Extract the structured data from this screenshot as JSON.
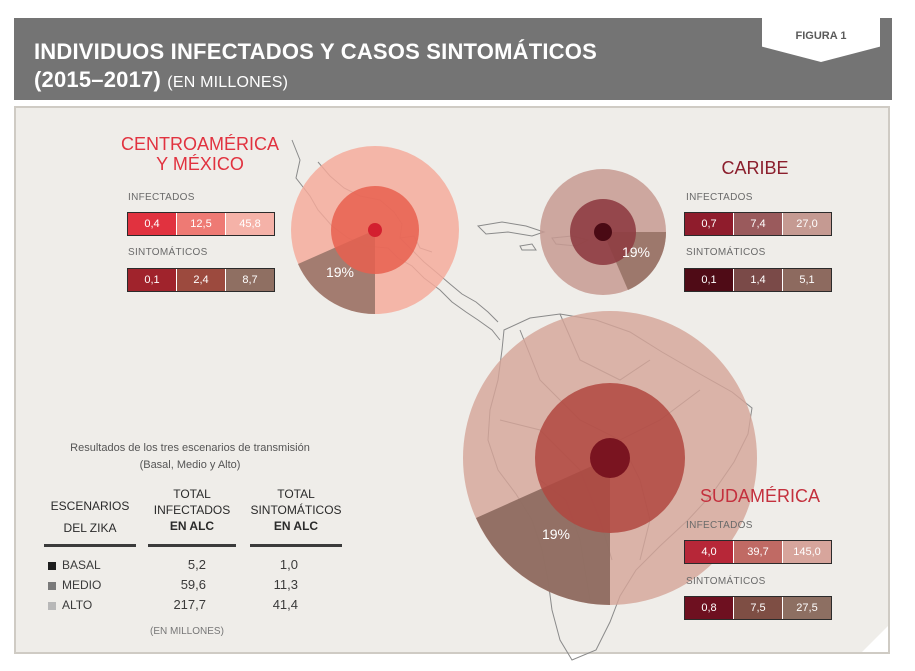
{
  "header": {
    "title_line1": "INDIVIDUOS INFECTADOS Y CASOS SINTOMÁTICOS",
    "title_line2": "(2015–2017)",
    "title_unit": "(EN MILLONES)",
    "figure_tag": "FIGURA 1"
  },
  "chart_data": {
    "type": "table",
    "title": "INDIVIDUOS INFECTADOS Y CASOS SINTOMÁTICOS (2015–2017)",
    "unit": "EN MILLONES",
    "scenarios": [
      "BASAL",
      "MEDIO",
      "ALTO"
    ],
    "symptomatic_share_label": "19%",
    "regions": [
      {
        "name_line1": "CENTROAMÉRICA",
        "name_line2": "Y MÉXICO",
        "color": "#e1323f",
        "infected_label": "INFECTADOS",
        "symptomatic_label": "SINTOMÁTICOS",
        "infected": [
          "0,4",
          "12,5",
          "45,8"
        ],
        "infected_values": [
          0.4,
          12.5,
          45.8
        ],
        "symptomatic": [
          "0,1",
          "2,4",
          "8,7"
        ],
        "symptomatic_values": [
          0.1,
          2.4,
          8.7
        ],
        "share_label": "19%"
      },
      {
        "name_line1": "CARIBE",
        "name_line2": "",
        "color": "#8b1e2c",
        "infected_label": "INFECTADOS",
        "symptomatic_label": "SINTOMÁTICOS",
        "infected": [
          "0,7",
          "7,4",
          "27,0"
        ],
        "infected_values": [
          0.7,
          7.4,
          27.0
        ],
        "symptomatic": [
          "0,1",
          "1,4",
          "5,1"
        ],
        "symptomatic_values": [
          0.1,
          1.4,
          5.1
        ],
        "share_label": "19%"
      },
      {
        "name_line1": "SUDAMÉRICA",
        "name_line2": "",
        "color": "#c4303d",
        "infected_label": "INFECTADOS",
        "symptomatic_label": "SINTOMÁTICOS",
        "infected": [
          "4,0",
          "39,7",
          "145,0"
        ],
        "infected_values": [
          4.0,
          39.7,
          145.0
        ],
        "symptomatic": [
          "0,8",
          "7,5",
          "27,5"
        ],
        "symptomatic_values": [
          0.8,
          7.5,
          27.5
        ],
        "share_label": "19%"
      }
    ],
    "totals": {
      "note_line1": "Resultados de los tres escenarios de transmisión",
      "note_line2": "(Basal, Medio y Alto)",
      "col1_line1": "ESCENARIOS",
      "col1_line2": "DEL ZIKA",
      "col2_line1": "TOTAL",
      "col2_line2": "INFECTADOS",
      "col2_line3": "EN ALC",
      "col3_line1": "TOTAL",
      "col3_line2": "SINTOMÁTICOS",
      "col3_line3": "EN ALC",
      "rows": [
        {
          "scenario": "BASAL",
          "infected": "5,2",
          "symptomatic": "1,0",
          "color": "#1e1e1e"
        },
        {
          "scenario": "MEDIO",
          "infected": "59,6",
          "symptomatic": "11,3",
          "color": "#7a7a7a"
        },
        {
          "scenario": "ALTO",
          "infected": "217,7",
          "symptomatic": "41,4",
          "color": "#b8b8b8"
        }
      ],
      "unit_note": "(EN MILLONES)"
    }
  }
}
